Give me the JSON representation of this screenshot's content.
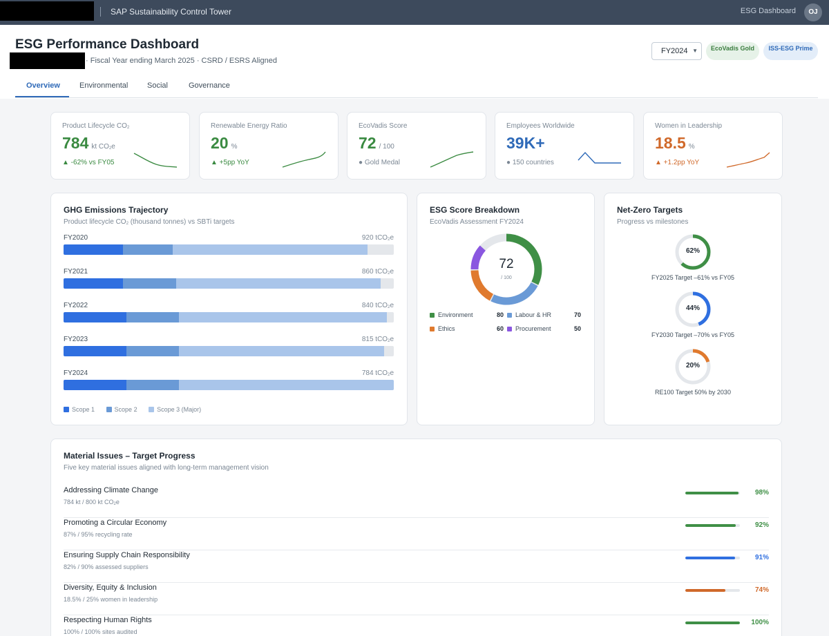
{
  "topbar": {
    "app_title": "SAP Sustainability Control Tower",
    "nav_link": "ESG Dashboard",
    "avatar_initials": "OJ"
  },
  "header": {
    "title": "ESG Performance Dashboard",
    "subtitle": "· Fiscal Year ending March 2025 · CSRD / ESRS Aligned",
    "fy_select": "FY2024",
    "badges": [
      "EcoVadis Gold",
      "ISS-ESG Prime"
    ]
  },
  "tabs": [
    "Overview",
    "Environmental",
    "Social",
    "Governance"
  ],
  "kpis": [
    {
      "label": "Product Lifecycle CO",
      "label_sub": "2",
      "value": "784",
      "unit": "kt CO",
      "unit_sub": "2",
      "unit_tail": "e",
      "delta": "▲ -62% vs FY05",
      "color": "#3a8a41"
    },
    {
      "label": "Renewable Energy Ratio",
      "value": "20",
      "unit": "%",
      "delta": "▲ +5pp YoY",
      "color": "#3a8a41"
    },
    {
      "label": "EcoVadis Score",
      "value": "72",
      "unit": "/ 100",
      "delta": "● Gold Medal",
      "color": "#3a8a41"
    },
    {
      "label": "Employees Worldwide",
      "value": "39K+",
      "unit": "",
      "delta": "● 150 countries",
      "color": "#2f6ab8"
    },
    {
      "label": "Women in Leadership",
      "value": "18.5",
      "unit": "%",
      "delta": "▲ +1.2pp YoY",
      "color": "#d0692a"
    }
  ],
  "ghg": {
    "title": "GHG Emissions Trajectory",
    "subtitle_a": "Product lifecycle CO",
    "subtitle_sub": "2",
    "subtitle_b": " (thousand tonnes) vs SBTi targets",
    "unit_a": " tCO",
    "unit_sub": "2",
    "unit_b": "e",
    "rows": [
      {
        "year": "FY2020",
        "value": "920",
        "s1": 18,
        "s2": 15,
        "s3": 59
      },
      {
        "year": "FY2021",
        "value": "860",
        "s1": 18,
        "s2": 16,
        "s3": 62
      },
      {
        "year": "FY2022",
        "value": "840",
        "s1": 19,
        "s2": 16,
        "s3": 63
      },
      {
        "year": "FY2023",
        "value": "815",
        "s1": 19,
        "s2": 16,
        "s3": 62
      },
      {
        "year": "FY2024",
        "value": "784",
        "s1": 19,
        "s2": 16,
        "s3": 65
      }
    ],
    "legend": [
      "Scope 1",
      "Scope 2",
      "Scope 3 (Major)"
    ],
    "colors": [
      "#2f6fe0",
      "#6a9ad6",
      "#a9c5ea"
    ]
  },
  "esg": {
    "title": "ESG Score Breakdown",
    "subtitle": "EcoVadis Assessment FY2024",
    "score": "72",
    "score_of": "/ 100",
    "items": [
      {
        "name": "Environment",
        "value": "80",
        "color": "#3f8f46"
      },
      {
        "name": "Labour & HR",
        "value": "70",
        "color": "#6a9ad6"
      },
      {
        "name": "Ethics",
        "value": "60",
        "color": "#e07a2e"
      },
      {
        "name": "Procurement",
        "value": "50",
        "color": "#8a57e0"
      }
    ]
  },
  "netzero": {
    "title": "Net-Zero Targets",
    "subtitle": "Progress vs milestones",
    "rings": [
      {
        "pct_label": "62%",
        "pct": 62,
        "caption": "FY2025 Target –61% vs FY05",
        "color": "#3f8f46"
      },
      {
        "pct_label": "44%",
        "pct": 44,
        "caption": "FY2030 Target –70% vs FY05",
        "color": "#2f6fe0"
      },
      {
        "pct_label": "20%",
        "pct": 20,
        "caption": "RE100 Target 50% by 2030",
        "color": "#e07a2e"
      }
    ]
  },
  "material": {
    "title": "Material Issues – Target Progress",
    "subtitle": "Five key material issues aligned with long-term management vision",
    "items": [
      {
        "name": "Addressing Climate Change",
        "detail": "784 kt / 800 kt CO",
        "detail_sub": "2",
        "detail_tail": "e",
        "pct_label": "98%",
        "pct": 98,
        "color": "#3f8f46"
      },
      {
        "name": "Promoting a Circular Economy",
        "detail": "87% / 95% recycling rate",
        "pct_label": "92%",
        "pct": 92,
        "color": "#3f8f46"
      },
      {
        "name": "Ensuring Supply Chain Responsibility",
        "detail": "82% / 90% assessed suppliers",
        "pct_label": "91%",
        "pct": 91,
        "color": "#2f6fe0"
      },
      {
        "name": "Diversity, Equity & Inclusion",
        "detail": "18.5% / 25% women in leadership",
        "pct_label": "74%",
        "pct": 74,
        "color": "#d0692a"
      },
      {
        "name": "Respecting Human Rights",
        "detail": "100% / 100% sites audited",
        "pct_label": "100%",
        "pct": 100,
        "color": "#3f8f46"
      }
    ]
  }
}
